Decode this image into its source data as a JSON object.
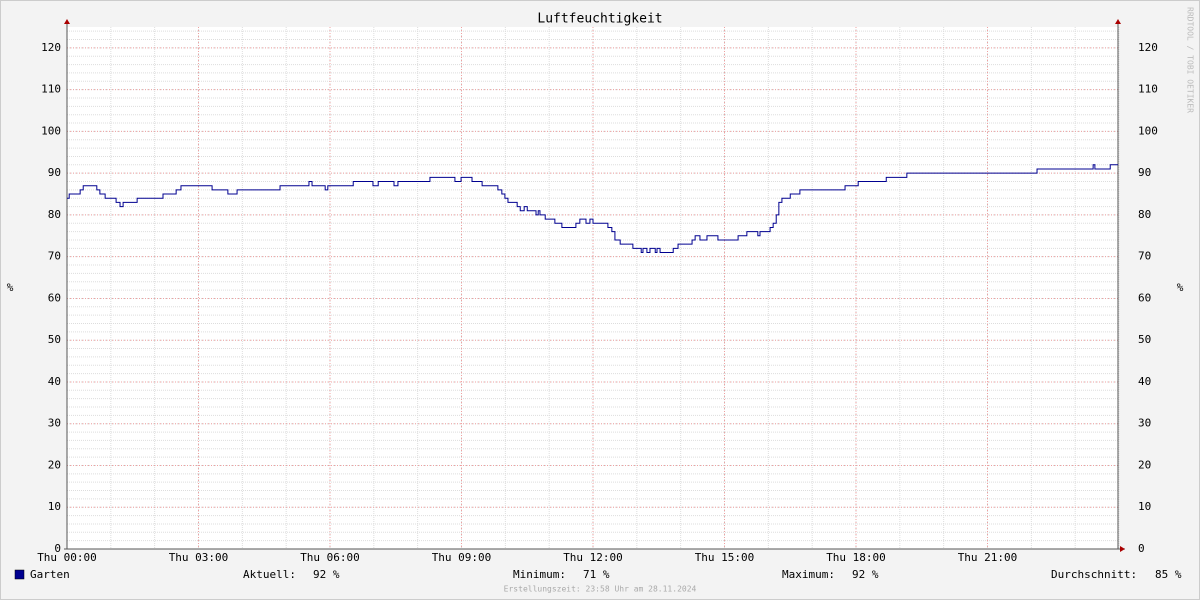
{
  "chart_data": {
    "type": "line",
    "title": "Luftfeuchtigkeit",
    "y_label": "%",
    "step": true,
    "grid": true,
    "xlim": [
      0,
      24
    ],
    "ylim": [
      0,
      125
    ],
    "xticks": [
      {
        "value": 0,
        "label": "Thu 00:00"
      },
      {
        "value": 3,
        "label": "Thu 03:00"
      },
      {
        "value": 6,
        "label": "Thu 06:00"
      },
      {
        "value": 9,
        "label": "Thu 09:00"
      },
      {
        "value": 12,
        "label": "Thu 12:00"
      },
      {
        "value": 15,
        "label": "Thu 15:00"
      },
      {
        "value": 18,
        "label": "Thu 18:00"
      },
      {
        "value": 21,
        "label": "Thu 21:00"
      }
    ],
    "yticks": [
      0,
      10,
      20,
      30,
      40,
      50,
      60,
      70,
      80,
      90,
      100,
      110,
      120
    ],
    "series": [
      {
        "name": "Garten",
        "color": "#000090",
        "x": [
          0,
          0.05,
          0.3,
          0.37,
          0.68,
          0.75,
          0.87,
          1.12,
          1.21,
          1.28,
          1.6,
          2.19,
          2.49,
          2.6,
          3.31,
          3.67,
          3.88,
          4.86,
          5.52,
          5.59,
          5.89,
          5.95,
          6.53,
          6.98,
          7.1,
          7.46,
          7.55,
          8.28,
          8.85,
          8.99,
          9.24,
          9.47,
          9.83,
          9.92,
          9.99,
          10.06,
          10.27,
          10.34,
          10.43,
          10.5,
          10.7,
          10.75,
          10.79,
          10.91,
          11.13,
          11.29,
          11.61,
          11.7,
          11.84,
          11.93,
          12.0,
          12.34,
          12.43,
          12.5,
          12.62,
          12.91,
          13.1,
          13.14,
          13.23,
          13.3,
          13.42,
          13.46,
          13.53,
          13.83,
          13.94,
          14.26,
          14.33,
          14.44,
          14.6,
          14.85,
          15.31,
          15.51,
          15.76,
          15.81,
          16.04,
          16.11,
          16.18,
          16.24,
          16.31,
          16.5,
          16.72,
          17.75,
          18.05,
          18.69,
          19.16,
          22.13,
          23.41,
          23.45,
          23.8,
          23.98
        ],
        "values": [
          84,
          85,
          86,
          87,
          86,
          85,
          84,
          83,
          82,
          83,
          84,
          85,
          86,
          87,
          86,
          85,
          86,
          87,
          88,
          87,
          86,
          87,
          88,
          87,
          88,
          87,
          88,
          89,
          88,
          89,
          88,
          87,
          86,
          85,
          84,
          83,
          82,
          81,
          82,
          81,
          80,
          81,
          80,
          79,
          78,
          77,
          78,
          79,
          78,
          79,
          78,
          77,
          76,
          74,
          73,
          72,
          71,
          72,
          71,
          72,
          71,
          72,
          71,
          72,
          73,
          74,
          75,
          74,
          75,
          74,
          75,
          76,
          75,
          76,
          77,
          78,
          80,
          83,
          84,
          85,
          86,
          87,
          88,
          89,
          90,
          91,
          92,
          91,
          92,
          92
        ]
      }
    ],
    "stats": [
      {
        "label": "Aktuell:",
        "value": "92 %"
      },
      {
        "label": "Minimum:",
        "value": "71 %"
      },
      {
        "label": "Maximum:",
        "value": "92 %"
      },
      {
        "label": "Durchschnitt:",
        "value": "85 %"
      }
    ],
    "watermark": "RRDTOOL / TOBI OETIKER",
    "footer": "Erstellungszeit: 23:58 Uhr am 28.11.2024"
  }
}
